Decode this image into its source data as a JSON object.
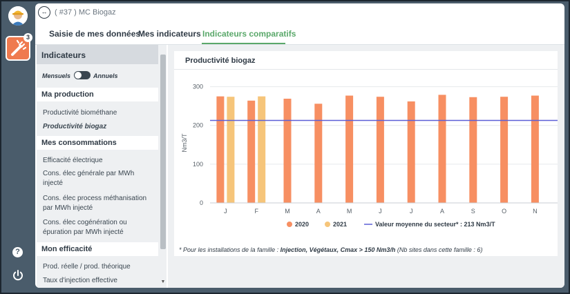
{
  "header": {
    "title": "( #37 ) MC Biogaz",
    "badge_count": "3"
  },
  "tabs": [
    {
      "label": "Saisie de mes données"
    },
    {
      "label": "Mes indicateurs"
    },
    {
      "label": "Indicateurs comparatifs"
    }
  ],
  "sidebar": {
    "title": "Indicateurs",
    "toggle": {
      "left": "Mensuels",
      "right": "Annuels"
    },
    "sections": [
      {
        "title": "Ma production",
        "items": [
          "Productivité biométhane",
          "Productivité biogaz"
        ]
      },
      {
        "title": "Mes consommations",
        "items": [
          "Efficacité électrique",
          "Cons. élec générale par MWh injecté",
          "Cons. élec process méthanisation par MWh injecté",
          "Cons. élec cogénération ou épuration par MWh injecté"
        ]
      },
      {
        "title": "Mon efficacité",
        "items": [
          "Prod. réelle / prod. théorique",
          "Taux d'injection effective"
        ]
      }
    ],
    "current_item": "Productivité biogaz"
  },
  "card": {
    "title": "Productivité biogaz",
    "footnote_prefix": "* Pour les installations de la famille : ",
    "footnote_family": "Injection, Végétaux, Cmax > 150 Nm3/h",
    "footnote_suffix": "  (Nb sites dans cette famille : 6)"
  },
  "chart_data": {
    "type": "bar",
    "title": "",
    "ylabel": "Nm3/T",
    "xlabel": "",
    "categories": [
      "J",
      "F",
      "M",
      "A",
      "M",
      "J",
      "J",
      "A",
      "S",
      "O",
      "N"
    ],
    "series": [
      {
        "name": "2020",
        "color": "#f78f62",
        "values": [
          275,
          264,
          269,
          256,
          277,
          274,
          262,
          279,
          273,
          274,
          277
        ]
      },
      {
        "name": "2021",
        "color": "#f6c57a",
        "values": [
          274,
          275,
          null,
          null,
          null,
          null,
          null,
          null,
          null,
          null,
          null
        ]
      }
    ],
    "reference_line": {
      "name": "Valeur moyenne du secteur* : 213 Nm3/T",
      "value": 213,
      "color": "#5b5fd6"
    },
    "yticks": [
      0,
      100,
      200,
      300
    ],
    "ylim": [
      0,
      310
    ],
    "grid": true,
    "legend_position": "bottom"
  }
}
